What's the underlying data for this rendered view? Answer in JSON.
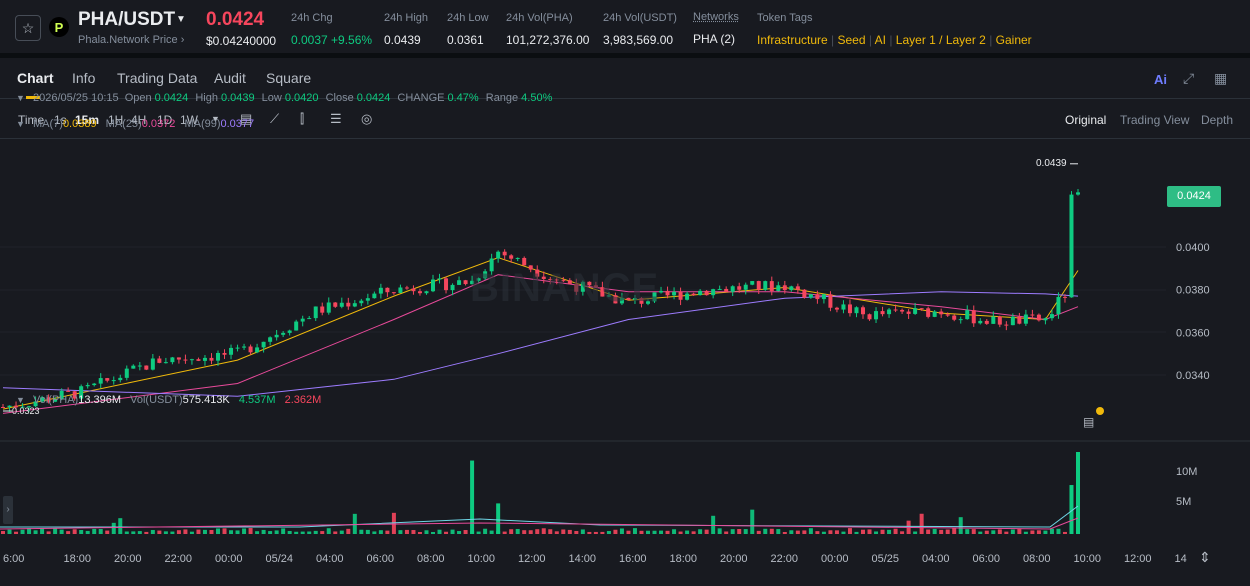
{
  "header": {
    "pair": "PHA/USDT",
    "pair_sub": "Phala.Network Price ›",
    "last_price": "0.0424",
    "last_price_usd": "$0.04240000",
    "stats": [
      {
        "label": "24h Chg",
        "value": "0.0037 +9.56%",
        "tone": "up"
      },
      {
        "label": "24h High",
        "value": "0.0439",
        "tone": "neutral"
      },
      {
        "label": "24h Low",
        "value": "0.0361",
        "tone": "neutral"
      },
      {
        "label": "24h Vol(PHA)",
        "value": "101,272,376.00",
        "tone": "neutral"
      },
      {
        "label": "24h Vol(USDT)",
        "value": "3,983,569.00",
        "tone": "neutral"
      },
      {
        "label": "Networks",
        "value": "PHA (2)",
        "tone": "neutral"
      }
    ],
    "token_tags_label": "Token Tags",
    "token_tags": [
      "Infrastructure",
      "Seed",
      "AI",
      "Layer 1 / Layer 2",
      "Gainer"
    ]
  },
  "tabs": [
    "Chart",
    "Info",
    "Trading Data",
    "Audit",
    "Square"
  ],
  "active_tab": "Chart",
  "toolbar": {
    "time_label": "Time",
    "timeframes": [
      "1s",
      "15m",
      "1H",
      "4H",
      "1D",
      "1W"
    ],
    "active_timeframe": "15m",
    "views": [
      "Original",
      "Trading View",
      "Depth"
    ],
    "active_view": "Original"
  },
  "legend": {
    "datetime": "2026/05/25 10:15",
    "open_label": "Open",
    "open": "0.0424",
    "high_label": "High",
    "high": "0.0439",
    "low_label": "Low",
    "low": "0.0420",
    "close_label": "Close",
    "close": "0.0424",
    "change_label": "CHANGE",
    "change": "0.47%",
    "range_label": "Range",
    "range": "4.50%",
    "ma7_label": "MA(7)",
    "ma7": "0.0389",
    "ma25_label": "MA(25)",
    "ma25": "0.0372",
    "ma99_label": "MA(99)",
    "ma99": "0.0377",
    "vol_label": "Vol(PHA)",
    "vol_pha": "13.396M",
    "vol_usdt_label": "Vol(USDT)",
    "vol_usdt": "575.413K",
    "vol_ma1": "4.537M",
    "vol_ma2": "2.362M"
  },
  "price_axis": {
    "current": "0.0424",
    "high_marker": "0.0439",
    "low_marker": "0.0323",
    "ticks": [
      "0.0400",
      "0.0380",
      "0.0360",
      "0.0340"
    ]
  },
  "volume_axis": {
    "ticks": [
      "10M",
      "5M"
    ]
  },
  "time_axis": [
    "6:00",
    "18:00",
    "20:00",
    "22:00",
    "00:00",
    "05/24",
    "04:00",
    "06:00",
    "08:00",
    "10:00",
    "12:00",
    "14:00",
    "16:00",
    "18:00",
    "20:00",
    "22:00",
    "00:00",
    "05/25",
    "04:00",
    "06:00",
    "08:00",
    "10:00",
    "12:00",
    "14"
  ],
  "watermark": "BINANCE",
  "colors": {
    "up": "#0ecb81",
    "down": "#f6465d",
    "ma7": "#f0b90b",
    "ma25": "#e84a9a",
    "ma99": "#9d7cff",
    "accent": "#f0b90b"
  },
  "chart_data": {
    "type": "candlestick",
    "interval": "15m",
    "ylim": [
      0.0318,
      0.0442
    ],
    "series": [
      {
        "name": "PHA/USDT",
        "kind": "close",
        "x": [
          "05/23 17:00",
          "05/23 20:00",
          "05/23 23:00",
          "05/24 02:00",
          "05/24 05:00",
          "05/24 08:00",
          "05/24 11:00",
          "05/24 12:00",
          "05/24 14:00",
          "05/24 17:00",
          "05/24 20:00",
          "05/24 23:00",
          "05/25 02:00",
          "05/25 05:00",
          "05/25 07:00",
          "05/25 09:00",
          "05/25 09:45",
          "05/25 10:00",
          "05/25 10:15"
        ],
        "values": [
          0.0325,
          0.0332,
          0.0347,
          0.035,
          0.037,
          0.038,
          0.0384,
          0.0398,
          0.0386,
          0.0374,
          0.038,
          0.0382,
          0.0368,
          0.037,
          0.0365,
          0.0366,
          0.0378,
          0.0422,
          0.0424
        ]
      },
      {
        "name": "MA(7)",
        "kind": "line",
        "x": [
          "05/23 17:00",
          "05/24 02:00",
          "05/24 08:00",
          "05/24 12:00",
          "05/24 17:00",
          "05/24 23:00",
          "05/25 05:00",
          "05/25 09:00",
          "05/25 10:15"
        ],
        "values": [
          0.0324,
          0.0347,
          0.0377,
          0.0395,
          0.0375,
          0.0381,
          0.0369,
          0.0366,
          0.0389
        ]
      },
      {
        "name": "MA(25)",
        "kind": "line",
        "x": [
          "05/23 17:00",
          "05/24 02:00",
          "05/24 08:00",
          "05/24 12:00",
          "05/24 17:00",
          "05/24 23:00",
          "05/25 05:00",
          "05/25 09:00",
          "05/25 10:15"
        ],
        "values": [
          0.0322,
          0.0336,
          0.0366,
          0.0387,
          0.0379,
          0.0379,
          0.0372,
          0.0366,
          0.0372
        ]
      },
      {
        "name": "MA(99)",
        "kind": "line",
        "x": [
          "05/23 17:00",
          "05/24 02:00",
          "05/24 08:00",
          "05/24 12:00",
          "05/24 17:00",
          "05/24 23:00",
          "05/25 05:00",
          "05/25 09:00",
          "05/25 10:15"
        ],
        "values": [
          0.0334,
          0.033,
          0.0338,
          0.035,
          0.0366,
          0.0376,
          0.0379,
          0.0378,
          0.0377
        ]
      }
    ],
    "volume": {
      "x": [
        "05/24 11:00",
        "05/24 12:00",
        "05/25 10:00",
        "05/25 10:15"
      ],
      "values": [
        12000000,
        5000000,
        8000000,
        13396000
      ]
    }
  }
}
